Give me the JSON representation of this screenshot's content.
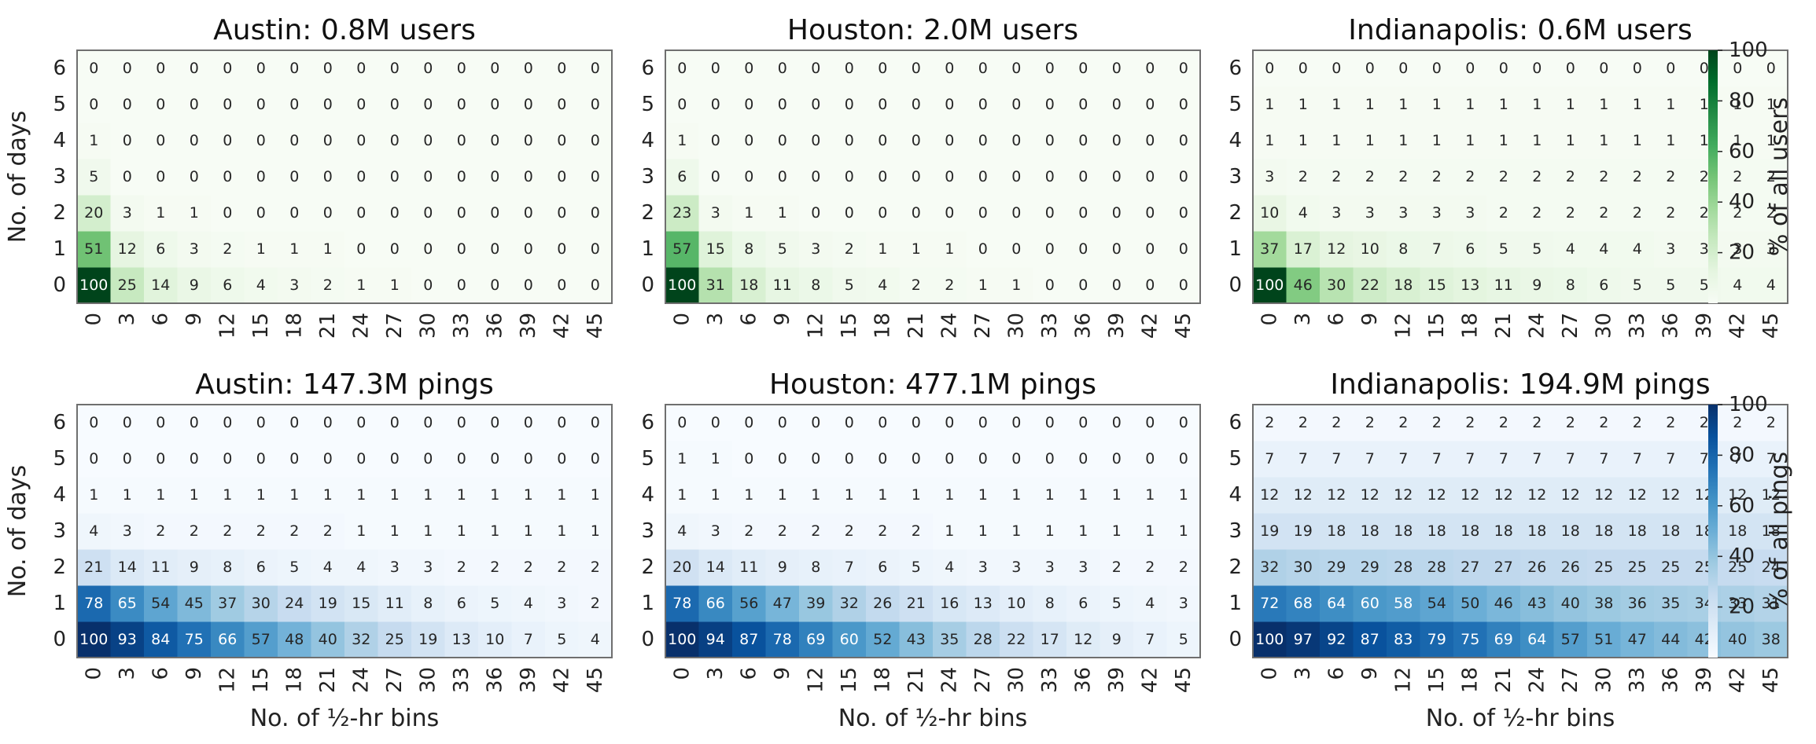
{
  "chart_data": [
    {
      "type": "heatmap",
      "id": "austin-users",
      "title": "Austin: 0.8M users",
      "palette": "greens",
      "ylabel": "No. of days",
      "xlabel": "",
      "x": [
        "0",
        "3",
        "6",
        "9",
        "12",
        "15",
        "18",
        "21",
        "24",
        "27",
        "30",
        "33",
        "36",
        "39",
        "42",
        "45"
      ],
      "y": [
        "0",
        "1",
        "2",
        "3",
        "4",
        "5",
        "6"
      ],
      "values": [
        [
          100,
          25,
          14,
          9,
          6,
          4,
          3,
          2,
          1,
          1,
          0,
          0,
          0,
          0,
          0,
          0
        ],
        [
          51,
          12,
          6,
          3,
          2,
          1,
          1,
          1,
          0,
          0,
          0,
          0,
          0,
          0,
          0,
          0
        ],
        [
          20,
          3,
          1,
          1,
          0,
          0,
          0,
          0,
          0,
          0,
          0,
          0,
          0,
          0,
          0,
          0
        ],
        [
          5,
          0,
          0,
          0,
          0,
          0,
          0,
          0,
          0,
          0,
          0,
          0,
          0,
          0,
          0,
          0
        ],
        [
          1,
          0,
          0,
          0,
          0,
          0,
          0,
          0,
          0,
          0,
          0,
          0,
          0,
          0,
          0,
          0
        ],
        [
          0,
          0,
          0,
          0,
          0,
          0,
          0,
          0,
          0,
          0,
          0,
          0,
          0,
          0,
          0,
          0
        ],
        [
          0,
          0,
          0,
          0,
          0,
          0,
          0,
          0,
          0,
          0,
          0,
          0,
          0,
          0,
          0,
          0
        ]
      ]
    },
    {
      "type": "heatmap",
      "id": "houston-users",
      "title": "Houston: 2.0M users",
      "palette": "greens",
      "ylabel": "",
      "xlabel": "",
      "x": [
        "0",
        "3",
        "6",
        "9",
        "12",
        "15",
        "18",
        "21",
        "24",
        "27",
        "30",
        "33",
        "36",
        "39",
        "42",
        "45"
      ],
      "y": [
        "0",
        "1",
        "2",
        "3",
        "4",
        "5",
        "6"
      ],
      "values": [
        [
          100,
          31,
          18,
          11,
          8,
          5,
          4,
          2,
          2,
          1,
          1,
          0,
          0,
          0,
          0,
          0
        ],
        [
          57,
          15,
          8,
          5,
          3,
          2,
          1,
          1,
          1,
          0,
          0,
          0,
          0,
          0,
          0,
          0
        ],
        [
          23,
          3,
          1,
          1,
          0,
          0,
          0,
          0,
          0,
          0,
          0,
          0,
          0,
          0,
          0,
          0
        ],
        [
          6,
          0,
          0,
          0,
          0,
          0,
          0,
          0,
          0,
          0,
          0,
          0,
          0,
          0,
          0,
          0
        ],
        [
          1,
          0,
          0,
          0,
          0,
          0,
          0,
          0,
          0,
          0,
          0,
          0,
          0,
          0,
          0,
          0
        ],
        [
          0,
          0,
          0,
          0,
          0,
          0,
          0,
          0,
          0,
          0,
          0,
          0,
          0,
          0,
          0,
          0
        ],
        [
          0,
          0,
          0,
          0,
          0,
          0,
          0,
          0,
          0,
          0,
          0,
          0,
          0,
          0,
          0,
          0
        ]
      ]
    },
    {
      "type": "heatmap",
      "id": "indianapolis-users",
      "title": "Indianapolis: 0.6M users",
      "palette": "greens",
      "ylabel": "",
      "xlabel": "",
      "x": [
        "0",
        "3",
        "6",
        "9",
        "12",
        "15",
        "18",
        "21",
        "24",
        "27",
        "30",
        "33",
        "36",
        "39",
        "42",
        "45"
      ],
      "y": [
        "0",
        "1",
        "2",
        "3",
        "4",
        "5",
        "6"
      ],
      "values": [
        [
          100,
          46,
          30,
          22,
          18,
          15,
          13,
          11,
          9,
          8,
          6,
          5,
          5,
          5,
          4,
          4
        ],
        [
          37,
          17,
          12,
          10,
          8,
          7,
          6,
          5,
          5,
          4,
          4,
          4,
          3,
          3,
          3,
          3
        ],
        [
          10,
          4,
          3,
          3,
          3,
          3,
          3,
          2,
          2,
          2,
          2,
          2,
          2,
          2,
          2,
          2
        ],
        [
          3,
          2,
          2,
          2,
          2,
          2,
          2,
          2,
          2,
          2,
          2,
          2,
          2,
          2,
          2,
          2
        ],
        [
          1,
          1,
          1,
          1,
          1,
          1,
          1,
          1,
          1,
          1,
          1,
          1,
          1,
          1,
          1,
          1
        ],
        [
          1,
          1,
          1,
          1,
          1,
          1,
          1,
          1,
          1,
          1,
          1,
          1,
          1,
          1,
          1,
          1
        ],
        [
          0,
          0,
          0,
          0,
          0,
          0,
          0,
          0,
          0,
          0,
          0,
          0,
          0,
          0,
          0,
          0
        ]
      ]
    },
    {
      "type": "heatmap",
      "id": "austin-pings",
      "title": "Austin: 147.3M pings",
      "palette": "blues",
      "ylabel": "No. of days",
      "xlabel": "No. of ½-hr bins",
      "x": [
        "0",
        "3",
        "6",
        "9",
        "12",
        "15",
        "18",
        "21",
        "24",
        "27",
        "30",
        "33",
        "36",
        "39",
        "42",
        "45"
      ],
      "y": [
        "0",
        "1",
        "2",
        "3",
        "4",
        "5",
        "6"
      ],
      "values": [
        [
          100,
          93,
          84,
          75,
          66,
          57,
          48,
          40,
          32,
          25,
          19,
          13,
          10,
          7,
          5,
          4
        ],
        [
          78,
          65,
          54,
          45,
          37,
          30,
          24,
          19,
          15,
          11,
          8,
          6,
          5,
          4,
          3,
          2
        ],
        [
          21,
          14,
          11,
          9,
          8,
          6,
          5,
          4,
          4,
          3,
          3,
          2,
          2,
          2,
          2,
          2
        ],
        [
          4,
          3,
          2,
          2,
          2,
          2,
          2,
          2,
          1,
          1,
          1,
          1,
          1,
          1,
          1,
          1
        ],
        [
          1,
          1,
          1,
          1,
          1,
          1,
          1,
          1,
          1,
          1,
          1,
          1,
          1,
          1,
          1,
          1
        ],
        [
          0,
          0,
          0,
          0,
          0,
          0,
          0,
          0,
          0,
          0,
          0,
          0,
          0,
          0,
          0,
          0
        ],
        [
          0,
          0,
          0,
          0,
          0,
          0,
          0,
          0,
          0,
          0,
          0,
          0,
          0,
          0,
          0,
          0
        ]
      ]
    },
    {
      "type": "heatmap",
      "id": "houston-pings",
      "title": "Houston: 477.1M pings",
      "palette": "blues",
      "ylabel": "",
      "xlabel": "No. of ½-hr bins",
      "x": [
        "0",
        "3",
        "6",
        "9",
        "12",
        "15",
        "18",
        "21",
        "24",
        "27",
        "30",
        "33",
        "36",
        "39",
        "42",
        "45"
      ],
      "y": [
        "0",
        "1",
        "2",
        "3",
        "4",
        "5",
        "6"
      ],
      "values": [
        [
          100,
          94,
          87,
          78,
          69,
          60,
          52,
          43,
          35,
          28,
          22,
          17,
          12,
          9,
          7,
          5
        ],
        [
          78,
          66,
          56,
          47,
          39,
          32,
          26,
          21,
          16,
          13,
          10,
          8,
          6,
          5,
          4,
          3
        ],
        [
          20,
          14,
          11,
          9,
          8,
          7,
          6,
          5,
          4,
          3,
          3,
          3,
          3,
          2,
          2,
          2
        ],
        [
          4,
          3,
          2,
          2,
          2,
          2,
          2,
          2,
          1,
          1,
          1,
          1,
          1,
          1,
          1,
          1
        ],
        [
          1,
          1,
          1,
          1,
          1,
          1,
          1,
          1,
          1,
          1,
          1,
          1,
          1,
          1,
          1,
          1
        ],
        [
          1,
          1,
          0,
          0,
          0,
          0,
          0,
          0,
          0,
          0,
          0,
          0,
          0,
          0,
          0,
          0
        ],
        [
          0,
          0,
          0,
          0,
          0,
          0,
          0,
          0,
          0,
          0,
          0,
          0,
          0,
          0,
          0,
          0
        ]
      ]
    },
    {
      "type": "heatmap",
      "id": "indianapolis-pings",
      "title": "Indianapolis: 194.9M pings",
      "palette": "blues",
      "ylabel": "",
      "xlabel": "No. of ½-hr bins",
      "x": [
        "0",
        "3",
        "6",
        "9",
        "12",
        "15",
        "18",
        "21",
        "24",
        "27",
        "30",
        "33",
        "36",
        "39",
        "42",
        "45"
      ],
      "y": [
        "0",
        "1",
        "2",
        "3",
        "4",
        "5",
        "6"
      ],
      "values": [
        [
          100,
          97,
          92,
          87,
          83,
          79,
          75,
          69,
          64,
          57,
          51,
          47,
          44,
          42,
          40,
          38
        ],
        [
          72,
          68,
          64,
          60,
          58,
          54,
          50,
          46,
          43,
          40,
          38,
          36,
          35,
          34,
          33,
          31
        ],
        [
          32,
          30,
          29,
          29,
          28,
          28,
          27,
          27,
          26,
          26,
          25,
          25,
          25,
          25,
          25,
          24
        ],
        [
          19,
          19,
          18,
          18,
          18,
          18,
          18,
          18,
          18,
          18,
          18,
          18,
          18,
          18,
          18,
          18
        ],
        [
          12,
          12,
          12,
          12,
          12,
          12,
          12,
          12,
          12,
          12,
          12,
          12,
          12,
          12,
          12,
          12
        ],
        [
          7,
          7,
          7,
          7,
          7,
          7,
          7,
          7,
          7,
          7,
          7,
          7,
          7,
          7,
          7,
          7
        ],
        [
          2,
          2,
          2,
          2,
          2,
          2,
          2,
          2,
          2,
          2,
          2,
          2,
          2,
          2,
          2,
          2
        ]
      ]
    }
  ],
  "colorbars": [
    {
      "label": "% of all users",
      "palette": "greens",
      "range": [
        0,
        100
      ],
      "ticks": [
        "20",
        "40",
        "60",
        "80",
        "100"
      ]
    },
    {
      "label": "% of all pings",
      "palette": "blues",
      "range": [
        0,
        100
      ],
      "ticks": [
        "20",
        "40",
        "60",
        "80",
        "100"
      ]
    }
  ],
  "colors": {
    "greens": [
      "#f7fcf5",
      "#e5f5e0",
      "#c7e9c0",
      "#a1d99b",
      "#74c476",
      "#41ab5d",
      "#238b45",
      "#006d2c",
      "#00441b"
    ],
    "blues": [
      "#f7fbff",
      "#deebf7",
      "#c6dbef",
      "#9ecae1",
      "#6baed6",
      "#4292c6",
      "#2171b5",
      "#08519c",
      "#08306b"
    ]
  }
}
